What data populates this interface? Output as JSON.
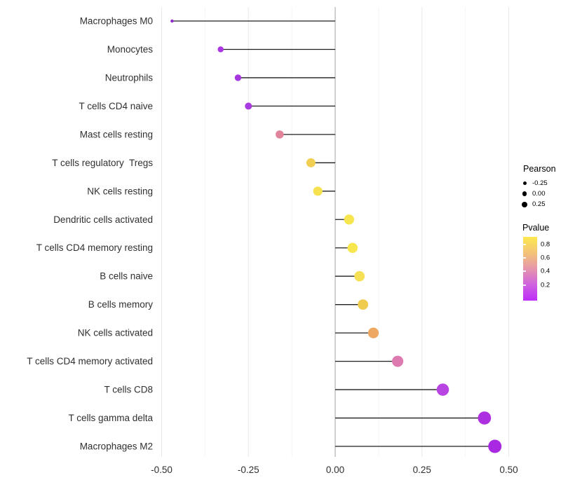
{
  "chart_data": {
    "type": "scatter",
    "variant": "lollipop",
    "title": "",
    "xlabel": "",
    "ylabel": "",
    "categories": [
      "Macrophages M0",
      "Monocytes",
      "Neutrophils",
      "T cells CD4 naive",
      "Mast cells resting",
      "T cells regulatory  Tregs",
      "NK cells resting",
      "Dendritic cells activated",
      "T cells CD4 memory resting",
      "B cells naive",
      "B cells memory",
      "NK cells activated",
      "T cells CD4 memory activated",
      "T cells CD8",
      "T cells gamma delta",
      "Macrophages M2"
    ],
    "series": [
      {
        "name": "Pearson",
        "values": [
          -0.47,
          -0.33,
          -0.28,
          -0.25,
          -0.16,
          -0.07,
          -0.05,
          0.04,
          0.05,
          0.07,
          0.08,
          0.11,
          0.18,
          0.31,
          0.43,
          0.46
        ]
      }
    ],
    "point_colors": [
      "#9329d3",
      "#a935e3",
      "#a637e0",
      "#a83ae2",
      "#e0849c",
      "#f0cf52",
      "#f6e150",
      "#f7e54f",
      "#f8e64e",
      "#f6e055",
      "#f0cc4e",
      "#eda961",
      "#dd7bb1",
      "#b844e2",
      "#ac30e0",
      "#a928e2"
    ],
    "x_ticks": [
      -0.5,
      -0.25,
      0,
      0.25,
      0.5
    ],
    "x_tick_labels": [
      "-0.50",
      "-0.25",
      "0.00",
      "0.25",
      "0.50"
    ],
    "xlim": [
      -0.52,
      0.52
    ],
    "grid": "vertical major + minor, light gray",
    "zero_line": true,
    "legend_position": "right"
  },
  "legend": {
    "pearson": {
      "title": "Pearson",
      "dot_color": "#000000",
      "items": [
        {
          "label": "-0.25",
          "diameter": 5
        },
        {
          "label": "0.00",
          "diameter": 6.5
        },
        {
          "label": "0.25",
          "diameter": 8
        }
      ]
    },
    "pvalue": {
      "title": "Pvalue",
      "tick_labels": [
        "0.8",
        "0.6",
        "0.4",
        "0.2"
      ],
      "tick_positions_pct": [
        12,
        33,
        54,
        76
      ],
      "gradient_stops": [
        "#fce94f",
        "#f4c377",
        "#e596ab",
        "#cf62e0",
        "#bd2cf9"
      ]
    }
  },
  "colors": {
    "stem": "#1f1f1f",
    "zero_line": "#a3a3a3",
    "grid_major": "#e8e8e8",
    "grid_minor": "#f4f4f4",
    "axis_text": "#303030",
    "background": "#ffffff"
  }
}
